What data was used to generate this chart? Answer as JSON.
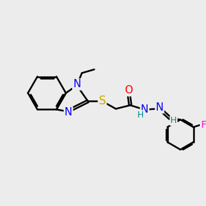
{
  "bg_color": "#ececec",
  "atom_colors": {
    "N": "#0000ff",
    "S": "#ccaa00",
    "O": "#ff0000",
    "F": "#ff00cc",
    "C": "#000000",
    "H": "#008888"
  },
  "bond_color": "#000000",
  "bond_width": 1.8,
  "font_size": 10,
  "figsize": [
    3.0,
    3.0
  ],
  "dpi": 100
}
